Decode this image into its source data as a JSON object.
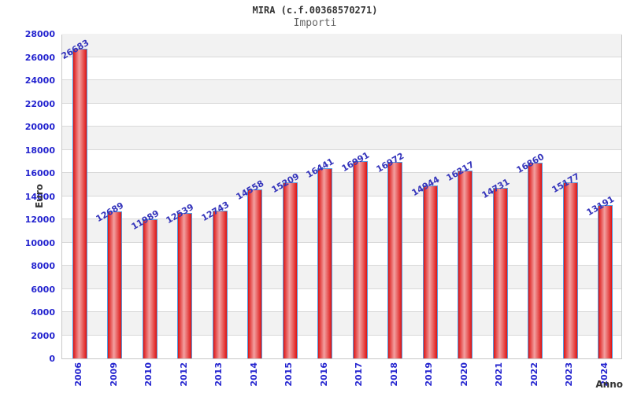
{
  "chart_data": {
    "type": "bar",
    "title": "MIRA (c.f.00368570271)",
    "subtitle": "Importi",
    "xlabel": "Anno",
    "ylabel": "Euro",
    "categories": [
      "2006",
      "2009",
      "2010",
      "2012",
      "2013",
      "2014",
      "2015",
      "2016",
      "2017",
      "2018",
      "2019",
      "2020",
      "2021",
      "2022",
      "2023",
      "2024"
    ],
    "values": [
      26683,
      12689,
      11989,
      12539,
      12743,
      14558,
      15209,
      16441,
      16991,
      16972,
      14944,
      16217,
      14731,
      16860,
      15177,
      13191
    ],
    "ylim": [
      0,
      28000
    ],
    "ytick_step": 2000,
    "ytick_labels": [
      "0",
      "2000",
      "4000",
      "6000",
      "8000",
      "10000",
      "12000",
      "14000",
      "16000",
      "18000",
      "20000",
      "22000",
      "24000",
      "26000",
      "28000"
    ],
    "grid": "horizontal-bands-alternating",
    "legend": "none",
    "colors": {
      "bar_fill_edge": "#dd1414",
      "bar_fill_highlight": "#f2a0a0",
      "bar_border": "#5599dd",
      "tick_label": "#2424cf",
      "value_label": "#3434bb",
      "axis_title": "#333333",
      "title_color": "#333333",
      "subtitle_color": "#666666",
      "band_gray": "#f2f2f2",
      "gridline": "#d9d9d9",
      "plot_border": "#c9c9c9",
      "background": "#ffffff"
    }
  }
}
